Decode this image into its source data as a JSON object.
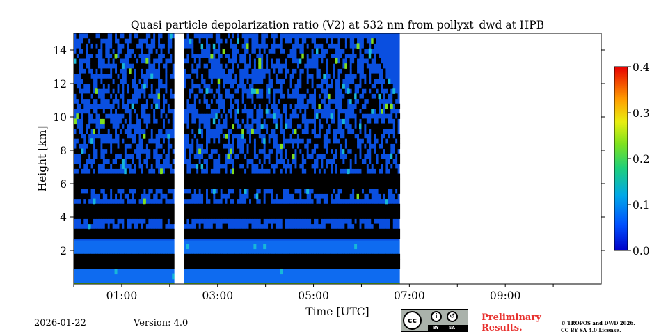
{
  "chart_data": {
    "type": "heatmap",
    "title": "Quasi particle depolarization ratio (V2) at 532 nm from pollyxt_dwd at HPB",
    "xlabel": "Time [UTC]",
    "ylabel": "Height [km]",
    "xlim": [
      0,
      11
    ],
    "ylim": [
      0,
      15
    ],
    "x_ticks": [
      {
        "value": 1,
        "label": "01:00"
      },
      {
        "value": 3,
        "label": "03:00"
      },
      {
        "value": 5,
        "label": "05:00"
      },
      {
        "value": 7,
        "label": "07:00"
      },
      {
        "value": 9,
        "label": "09:00"
      }
    ],
    "x_minor_ticks": [
      0,
      2,
      4,
      6,
      8,
      10
    ],
    "y_ticks": [
      2,
      4,
      6,
      8,
      10,
      12,
      14
    ],
    "colorbar": {
      "range": [
        0.0,
        0.4
      ],
      "ticks": [
        "0.0",
        "0.1",
        "0.2",
        "0.3",
        "0.4"
      ],
      "colormap": "jet"
    },
    "data_coverage": {
      "segments": [
        {
          "start": 0.0,
          "end": 2.1
        },
        {
          "start": 2.3,
          "end": 6.8
        }
      ],
      "no_data_after": 6.8
    },
    "dominant_value": 0.05,
    "low_signal_bands_km": [
      {
        "bottom": 0.7,
        "top": 1.0
      },
      {
        "bottom": 1.2,
        "top": 1.6
      },
      {
        "bottom": 2.6,
        "top": 3.0
      },
      {
        "bottom": 3.6,
        "top": 4.7
      },
      {
        "bottom": 5.5,
        "top": 6.3
      }
    ]
  },
  "footer": {
    "date": "2026-01-22",
    "version": "Version: 4.0",
    "preliminary_line1": "Preliminary",
    "preliminary_line2": "Results.",
    "copyright_line1": "© TROPOS and DWD 2026.",
    "copyright_line2": "CC BY SA 4.0 License.",
    "license_badge": {
      "cc": "cc",
      "by": "BY",
      "sa": "SA"
    }
  },
  "colors": {
    "accent_red": "#e8312e",
    "noise_blue": "#0a4fe0",
    "layer_blue": "#0e6bf0"
  }
}
